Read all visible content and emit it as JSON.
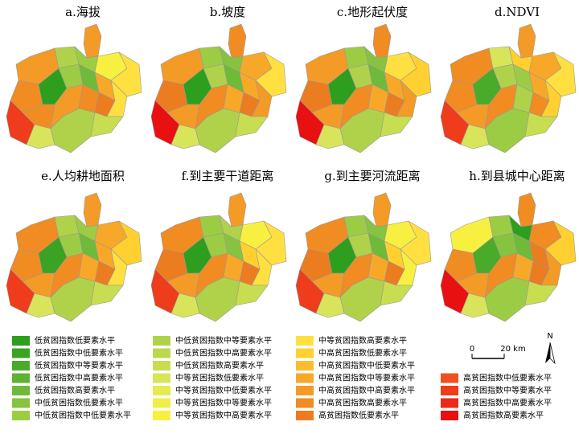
{
  "maps": [
    {
      "title": "a.海拔",
      "colors": [
        "#f49a26",
        "#f49a26",
        "#b0d24a",
        "#9ccc44",
        "#f8f040",
        "#ffe040",
        "#f08c22",
        "#2e9e1e",
        "#9ccc44",
        "#6fba38",
        "#f8a828",
        "#ffe040",
        "#ee3c1c",
        "#f08c22",
        "#f49a26",
        "#f08c22",
        "#ec7c20",
        "#b0d24a",
        "#c8dd50",
        "#d8e45a"
      ]
    },
    {
      "title": "b.坡度",
      "colors": [
        "#f08c22",
        "#f49a26",
        "#9ccc44",
        "#86c340",
        "#f8a828",
        "#ffe040",
        "#ec7c20",
        "#2e9e1e",
        "#b0d24a",
        "#6fba38",
        "#f8a828",
        "#f49a26",
        "#e81010",
        "#f49a26",
        "#f08c22",
        "#f8a828",
        "#ec7c20",
        "#b0d24a",
        "#c8dd50",
        "#d8e45a"
      ]
    },
    {
      "title": "c.地形起伏度",
      "colors": [
        "#f08c22",
        "#f49a26",
        "#9ccc44",
        "#86c340",
        "#ffe040",
        "#ffd030",
        "#ec7c20",
        "#2e9e1e",
        "#b0d24a",
        "#6fba38",
        "#f8a828",
        "#f49a26",
        "#e81010",
        "#f49a26",
        "#f08c22",
        "#f8a828",
        "#ec7c20",
        "#b0d24a",
        "#c8dd50",
        "#d8e45a"
      ]
    },
    {
      "title": "d.NDVI",
      "colors": [
        "#f49a26",
        "#f08c22",
        "#d8e45a",
        "#ffd030",
        "#f8a828",
        "#ffe040",
        "#f08c22",
        "#4aaa2a",
        "#b0d24a",
        "#9ccc44",
        "#f8a828",
        "#ffd030",
        "#ee3c1c",
        "#f49a26",
        "#f08c22",
        "#b0d24a",
        "#f08c22",
        "#9ccc44",
        "#c8dd50",
        "#d8e45a"
      ]
    },
    {
      "title": "e.人均耕地面积",
      "colors": [
        "#f49a26",
        "#f08c22",
        "#b0d24a",
        "#9ccc44",
        "#f8a828",
        "#ffd030",
        "#f08c22",
        "#3aa324",
        "#9ccc44",
        "#6fba38",
        "#f8a828",
        "#ffe040",
        "#ee3c1c",
        "#f49a26",
        "#f08c22",
        "#f8a828",
        "#ec7c20",
        "#b0d24a",
        "#c8dd50",
        "#d8e45a"
      ]
    },
    {
      "title": "f.到主要干道距离",
      "colors": [
        "#f49a26",
        "#f08c22",
        "#9ccc44",
        "#b0d24a",
        "#f8f040",
        "#ffe040",
        "#ec7c20",
        "#2e9e1e",
        "#9ccc44",
        "#86c340",
        "#ffd030",
        "#ffe040",
        "#ee3c1c",
        "#f49a26",
        "#f08c22",
        "#f8a828",
        "#ec7c20",
        "#b0d24a",
        "#c8dd50",
        "#d8e45a"
      ]
    },
    {
      "title": "g.到主要河流距离",
      "colors": [
        "#f49a26",
        "#f08c22",
        "#9ccc44",
        "#86c340",
        "#f8f040",
        "#ffe040",
        "#ec7c20",
        "#2e9e1e",
        "#b0d24a",
        "#6fba38",
        "#ffd030",
        "#f8f040",
        "#ee3c1c",
        "#f49a26",
        "#f08c22",
        "#f8a828",
        "#ec7c20",
        "#b0d24a",
        "#c8dd50",
        "#d8e45a"
      ]
    },
    {
      "title": "h.到县城中心距离",
      "colors": [
        "#f08c22",
        "#f8f040",
        "#9ccc44",
        "#2e9e1e",
        "#f08c22",
        "#ffd030",
        "#f08c22",
        "#4aaa2a",
        "#86c340",
        "#6fba38",
        "#ec7c20",
        "#f49a26",
        "#e81010",
        "#f49a26",
        "#f08c22",
        "#f8a828",
        "#ec7c20",
        "#9ccc44",
        "#c8dd50",
        "#d8e45a"
      ]
    }
  ],
  "legend": [
    {
      "label": "低贫困指数低要素水平",
      "color": "#2e9e1e"
    },
    {
      "label": "低贫困指数中低要素水平",
      "color": "#3aa324"
    },
    {
      "label": "低贫困指数中等要素水平",
      "color": "#4aaa2a"
    },
    {
      "label": "低贫困指数中高要素水平",
      "color": "#5cb232"
    },
    {
      "label": "低贫困指数高要素水平",
      "color": "#6fba38"
    },
    {
      "label": "中低贫困指数低要素水平",
      "color": "#86c340"
    },
    {
      "label": "中低贫困指数中低要素水平",
      "color": "#9ccc44"
    },
    {
      "label": "中低贫困指数中等要素水平",
      "color": "#b0d24a"
    },
    {
      "label": "中低贫困指数中高要素水平",
      "color": "#bcd84e"
    },
    {
      "label": "中低贫困指数高要素水平",
      "color": "#c8dd50"
    },
    {
      "label": "中等贫困指数低要素水平",
      "color": "#d8e45a"
    },
    {
      "label": "中等贫困指数中低要素水平",
      "color": "#e6ea50"
    },
    {
      "label": "中等贫困指数中等要素水平",
      "color": "#f0ee48"
    },
    {
      "label": "中等贫困指数中高要素水平",
      "color": "#f8f040"
    },
    {
      "label": "中等贫困指数高要素水平",
      "color": "#ffe040"
    },
    {
      "label": "中高贫困指数低要素水平",
      "color": "#ffd030"
    },
    {
      "label": "中高贫困指数中低要素水平",
      "color": "#fcbc30"
    },
    {
      "label": "中高贫困指数中等要素水平",
      "color": "#f8a828"
    },
    {
      "label": "中高贫困指数中高要素水平",
      "color": "#f49a26"
    },
    {
      "label": "中高贫困指数高要素水平",
      "color": "#f08c22"
    },
    {
      "label": "高贫困指数低要素水平",
      "color": "#ec7c20"
    },
    {
      "label": "高贫困指数中低要素水平",
      "color": "#f05020"
    },
    {
      "label": "高贫困指数中等要素水平",
      "color": "#ee3c1c"
    },
    {
      "label": "高贫困指数中高要素水平",
      "color": "#ec2818"
    },
    {
      "label": "高贫困指数高要素水平",
      "color": "#e81010"
    }
  ],
  "scale": {
    "zero": "0",
    "distance": "20 km"
  },
  "north": "N"
}
